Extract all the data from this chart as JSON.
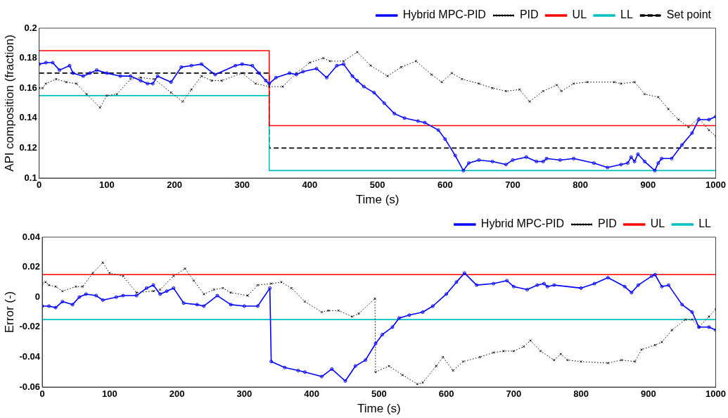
{
  "chart_data": [
    {
      "type": "line",
      "xlabel": "Time (s)",
      "ylabel": "API composition (fraction)",
      "xlim": [
        0,
        1000
      ],
      "xticks": [
        0,
        100,
        200,
        300,
        400,
        500,
        600,
        700,
        800,
        900,
        1000
      ],
      "ylim": [
        0.1,
        0.2
      ],
      "yticks": [
        0.1,
        0.12,
        0.14,
        0.16,
        0.18,
        0.2
      ],
      "grid": false,
      "legend": "top right",
      "series": [
        {
          "name": "Hybrid MPC-PID",
          "color": "#0000ff",
          "marker": "circle",
          "line_style": "solid",
          "x": [
            0,
            10,
            20,
            30,
            45,
            50,
            65,
            75,
            85,
            100,
            120,
            135,
            150,
            160,
            168,
            175,
            195,
            210,
            225,
            240,
            260,
            290,
            300,
            315,
            325,
            335,
            340,
            350,
            370,
            380,
            390,
            410,
            425,
            440,
            450,
            463,
            470,
            480,
            495,
            510,
            525,
            540,
            560,
            570,
            590,
            600,
            615,
            627,
            635,
            650,
            670,
            690,
            700,
            720,
            735,
            745,
            750,
            770,
            790,
            820,
            840,
            860,
            870,
            875,
            880,
            885,
            895,
            910,
            915,
            920,
            935,
            950,
            965,
            975,
            990,
            1000
          ],
          "values": [
            0.176,
            0.177,
            0.177,
            0.172,
            0.175,
            0.17,
            0.168,
            0.17,
            0.172,
            0.17,
            0.168,
            0.168,
            0.165,
            0.163,
            0.163,
            0.168,
            0.164,
            0.174,
            0.175,
            0.176,
            0.169,
            0.175,
            0.176,
            0.175,
            0.17,
            0.165,
            0.163,
            0.167,
            0.17,
            0.169,
            0.171,
            0.173,
            0.167,
            0.175,
            0.176,
            0.168,
            0.165,
            0.161,
            0.157,
            0.15,
            0.143,
            0.14,
            0.138,
            0.137,
            0.132,
            0.126,
            0.115,
            0.105,
            0.11,
            0.112,
            0.111,
            0.109,
            0.112,
            0.114,
            0.111,
            0.111,
            0.113,
            0.112,
            0.113,
            0.11,
            0.107,
            0.109,
            0.11,
            0.114,
            0.111,
            0.116,
            0.111,
            0.105,
            0.11,
            0.113,
            0.113,
            0.122,
            0.13,
            0.139,
            0.139,
            0.141
          ]
        },
        {
          "name": "PID",
          "color": "#000000",
          "marker": "cross",
          "line_style": "dotted",
          "x": [
            0,
            5,
            10,
            25,
            40,
            55,
            70,
            90,
            100,
            115,
            135,
            150,
            170,
            195,
            212,
            225,
            240,
            255,
            270,
            300,
            320,
            340,
            360,
            380,
            400,
            420,
            430,
            450,
            470,
            490,
            515,
            535,
            557,
            580,
            595,
            610,
            625,
            650,
            670,
            690,
            710,
            725,
            745,
            765,
            772,
            790,
            810,
            850,
            860,
            880,
            895,
            915,
            930,
            945,
            960,
            975,
            990,
            1000
          ],
          "values": [
            0.16,
            0.16,
            0.163,
            0.166,
            0.164,
            0.163,
            0.156,
            0.147,
            0.155,
            0.156,
            0.166,
            0.167,
            0.166,
            0.157,
            0.151,
            0.159,
            0.168,
            0.165,
            0.165,
            0.17,
            0.163,
            0.161,
            0.161,
            0.17,
            0.177,
            0.18,
            0.178,
            0.178,
            0.184,
            0.175,
            0.168,
            0.174,
            0.178,
            0.169,
            0.164,
            0.17,
            0.166,
            0.163,
            0.16,
            0.158,
            0.159,
            0.151,
            0.158,
            0.162,
            0.158,
            0.163,
            0.164,
            0.164,
            0.163,
            0.164,
            0.156,
            0.154,
            0.146,
            0.139,
            0.134,
            0.14,
            0.132,
            0.128
          ]
        },
        {
          "name": "UL",
          "color": "#ff0000",
          "marker": "none",
          "line_style": "solid",
          "x": [
            0,
            340,
            340,
            1000
          ],
          "values": [
            0.185,
            0.185,
            0.135,
            0.135
          ]
        },
        {
          "name": "LL",
          "color": "#00bfbf",
          "marker": "none",
          "line_style": "solid",
          "x": [
            0,
            340,
            340,
            1000
          ],
          "values": [
            0.155,
            0.155,
            0.105,
            0.105
          ]
        },
        {
          "name": "Set point",
          "color": "#000000",
          "marker": "none",
          "line_style": "dashed",
          "x": [
            0,
            340,
            340,
            1000
          ],
          "values": [
            0.17,
            0.17,
            0.12,
            0.12
          ]
        }
      ]
    },
    {
      "type": "line",
      "xlabel": "Time (s)",
      "ylabel": "Error (-)",
      "xlim": [
        0,
        1000
      ],
      "xticks": [
        0,
        100,
        200,
        300,
        400,
        500,
        600,
        700,
        800,
        900,
        1000
      ],
      "ylim": [
        -0.06,
        0.04
      ],
      "yticks": [
        -0.06,
        -0.04,
        -0.02,
        0,
        0.02,
        0.04
      ],
      "grid": false,
      "legend": "top right",
      "series": [
        {
          "name": "Hybrid MPC-PID",
          "color": "#0000ff",
          "marker": "circle",
          "line_style": "solid",
          "x": [
            0,
            10,
            20,
            30,
            45,
            55,
            65,
            80,
            90,
            110,
            120,
            140,
            155,
            165,
            175,
            185,
            195,
            210,
            230,
            240,
            260,
            280,
            300,
            320,
            338,
            340,
            360,
            380,
            390,
            415,
            430,
            450,
            465,
            480,
            495,
            505,
            520,
            530,
            545,
            565,
            580,
            600,
            615,
            627,
            645,
            670,
            690,
            700,
            720,
            735,
            745,
            750,
            760,
            800,
            820,
            840,
            865,
            875,
            885,
            905,
            910,
            920,
            930,
            950,
            965,
            975,
            990,
            1000
          ],
          "values": [
            -0.006,
            -0.006,
            -0.007,
            -0.003,
            -0.005,
            0,
            0.002,
            0.001,
            -0.002,
            0,
            0.001,
            0.001,
            0.006,
            0.008,
            0.002,
            0.004,
            0.006,
            -0.004,
            -0.005,
            -0.006,
            0.001,
            -0.005,
            -0.006,
            -0.006,
            0.006,
            -0.043,
            -0.047,
            -0.049,
            -0.05,
            -0.053,
            -0.048,
            -0.056,
            -0.046,
            -0.042,
            -0.031,
            -0.025,
            -0.02,
            -0.014,
            -0.012,
            -0.01,
            -0.006,
            0.002,
            0.01,
            0.016,
            0.008,
            0.009,
            0.011,
            0.007,
            0.005,
            0.008,
            0.009,
            0.007,
            0.008,
            0.006,
            0.009,
            0.013,
            0.007,
            0.003,
            0.008,
            0.014,
            0.015,
            0.007,
            0.008,
            -0.005,
            -0.01,
            -0.02,
            -0.02,
            -0.022
          ]
        },
        {
          "name": "PID",
          "color": "#000000",
          "marker": "cross",
          "line_style": "dotted",
          "x": [
            0,
            5,
            10,
            20,
            30,
            50,
            60,
            75,
            90,
            100,
            120,
            140,
            165,
            175,
            195,
            212,
            225,
            240,
            255,
            268,
            280,
            305,
            320,
            340,
            355,
            370,
            390,
            415,
            425,
            440,
            460,
            470,
            494,
            495,
            515,
            535,
            557,
            565,
            585,
            595,
            610,
            625,
            650,
            670,
            685,
            700,
            715,
            725,
            740,
            760,
            770,
            780,
            800,
            840,
            860,
            880,
            890,
            910,
            920,
            935,
            955,
            965,
            975,
            990,
            1000
          ],
          "values": [
            0.009,
            0.01,
            0.008,
            0.007,
            0.004,
            0.007,
            0.007,
            0.016,
            0.023,
            0.016,
            0.014,
            0.003,
            0.004,
            0.005,
            0.014,
            0.019,
            0.011,
            0.002,
            0.005,
            0.006,
            0.003,
            0.001,
            0.008,
            0.009,
            0.01,
            0.006,
            -0.003,
            -0.01,
            -0.009,
            -0.009,
            -0.013,
            -0.011,
            -0.001,
            -0.05,
            -0.046,
            -0.052,
            -0.058,
            -0.057,
            -0.046,
            -0.04,
            -0.049,
            -0.043,
            -0.04,
            -0.037,
            -0.036,
            -0.036,
            -0.033,
            -0.029,
            -0.036,
            -0.042,
            -0.038,
            -0.042,
            -0.043,
            -0.044,
            -0.042,
            -0.043,
            -0.035,
            -0.032,
            -0.03,
            -0.022,
            -0.015,
            -0.015,
            -0.02,
            -0.013,
            -0.008
          ]
        },
        {
          "name": "UL",
          "color": "#ff0000",
          "marker": "none",
          "line_style": "solid",
          "x": [
            0,
            1000
          ],
          "values": [
            0.015,
            0.015
          ]
        },
        {
          "name": "LL",
          "color": "#00bfbf",
          "marker": "none",
          "line_style": "solid",
          "x": [
            0,
            1000
          ],
          "values": [
            -0.015,
            -0.015
          ]
        }
      ]
    }
  ]
}
